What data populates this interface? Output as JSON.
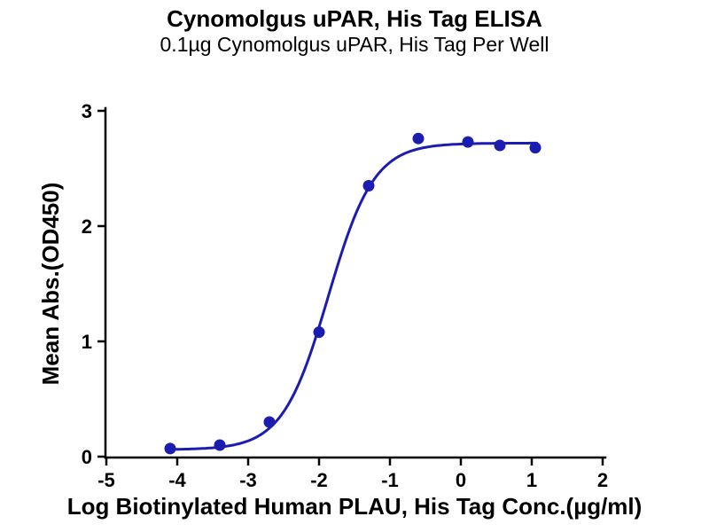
{
  "title": "Cynomolgus uPAR, His Tag ELISA",
  "subtitle": "0.1µg Cynomolgus uPAR, His Tag Per Well",
  "chart_data": {
    "type": "scatter",
    "title": "Cynomolgus uPAR, His Tag ELISA",
    "subtitle": "0.1µg Cynomolgus uPAR, His Tag Per Well",
    "xlabel": "Log Biotinylated Human PLAU, His Tag Conc.(µg/ml)",
    "ylabel": "Mean Abs.(OD450)",
    "xlim": [
      -5,
      2
    ],
    "ylim": [
      0,
      3
    ],
    "x_ticks": [
      -5,
      -4,
      -3,
      -2,
      -1,
      0,
      1,
      2
    ],
    "y_ticks": [
      0,
      1,
      2,
      3
    ],
    "grid": false,
    "legend": false,
    "color": "#1c1cb0",
    "points": [
      {
        "x": -4.1,
        "y": 0.07
      },
      {
        "x": -3.4,
        "y": 0.1
      },
      {
        "x": -2.7,
        "y": 0.3
      },
      {
        "x": -2.0,
        "y": 1.08
      },
      {
        "x": -1.3,
        "y": 2.35
      },
      {
        "x": -0.6,
        "y": 2.76
      },
      {
        "x": 0.1,
        "y": 2.73
      },
      {
        "x": 0.55,
        "y": 2.7
      },
      {
        "x": 1.05,
        "y": 2.68
      }
    ],
    "fit": {
      "model": "4PL",
      "bottom": 0.06,
      "top": 2.72,
      "logEC50": -1.87,
      "hill": 1.35,
      "x_start": -4.12,
      "x_end": 1.07
    }
  }
}
